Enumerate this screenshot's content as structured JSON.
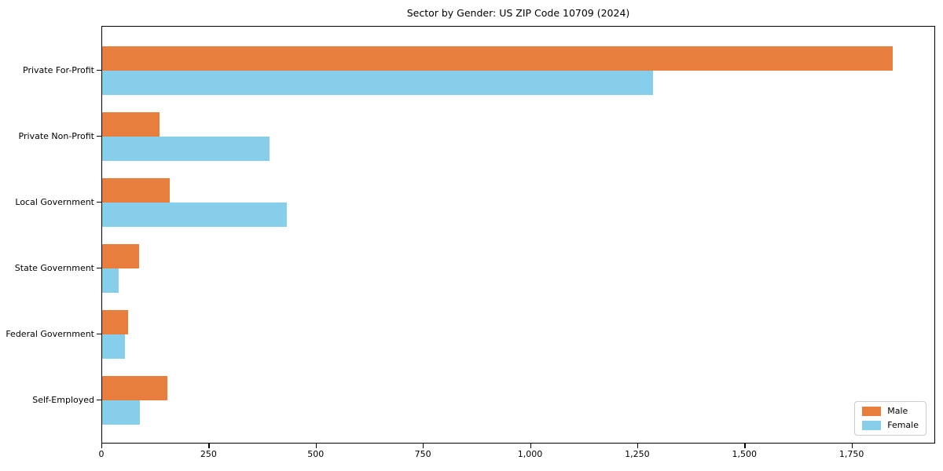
{
  "chart_data": {
    "type": "bar",
    "orientation": "horizontal",
    "title": "Sector by Gender: US ZIP Code 10709 (2024)",
    "categories": [
      "Private For-Profit",
      "Private Non-Profit",
      "Local Government",
      "State Government",
      "Federal Government",
      "Self-Employed"
    ],
    "series": [
      {
        "name": "Male",
        "color": "#e87e3e",
        "values": [
          1845,
          134,
          158,
          86,
          61,
          152
        ]
      },
      {
        "name": "Female",
        "color": "#87ceeb",
        "values": [
          1285,
          391,
          431,
          39,
          53,
          88
        ]
      }
    ],
    "xlabel": "",
    "ylabel": "",
    "xlim": [
      0,
      1945
    ],
    "xticks": [
      0,
      250,
      500,
      750,
      1000,
      1250,
      1500,
      1750
    ],
    "xtick_labels": [
      "0",
      "250",
      "500",
      "750",
      "1,000",
      "1,250",
      "1,500",
      "1,750"
    ],
    "grid": false,
    "plot_background": "#ffffff",
    "axis_color": "#000000",
    "legend": {
      "position": "lower right",
      "entries": [
        "Male",
        "Female"
      ]
    }
  }
}
